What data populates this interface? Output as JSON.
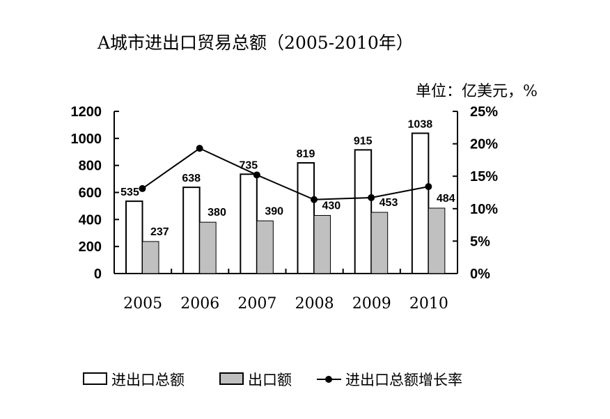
{
  "chart_data": {
    "type": "bar+line",
    "title": "A城市进出口贸易总额（2005-2010年）",
    "unit": "单位：亿美元，%",
    "categories": [
      "2005",
      "2006",
      "2007",
      "2008",
      "2009",
      "2010"
    ],
    "series": [
      {
        "name": "进出口总额",
        "type": "bar",
        "axis": "left",
        "color": "#ffffff",
        "values": [
          535,
          638,
          735,
          819,
          915,
          1038
        ]
      },
      {
        "name": "出口额",
        "type": "bar",
        "axis": "left",
        "color": "#c0c0c0",
        "values": [
          237,
          380,
          390,
          430,
          453,
          484
        ]
      },
      {
        "name": "进出口总额增长率",
        "type": "line",
        "axis": "right",
        "color": "#000000",
        "values": [
          13.1,
          19.3,
          15.2,
          11.4,
          11.7,
          13.4
        ]
      }
    ],
    "y_left": {
      "range": [
        0,
        1200
      ],
      "ticks": [
        "0",
        "200",
        "400",
        "600",
        "800",
        "1000",
        "1200"
      ]
    },
    "y_right": {
      "range": [
        0,
        25
      ],
      "ticks": [
        "0%",
        "5%",
        "10%",
        "15%",
        "20%",
        "25%"
      ]
    },
    "grid": false,
    "legend_position": "bottom"
  }
}
